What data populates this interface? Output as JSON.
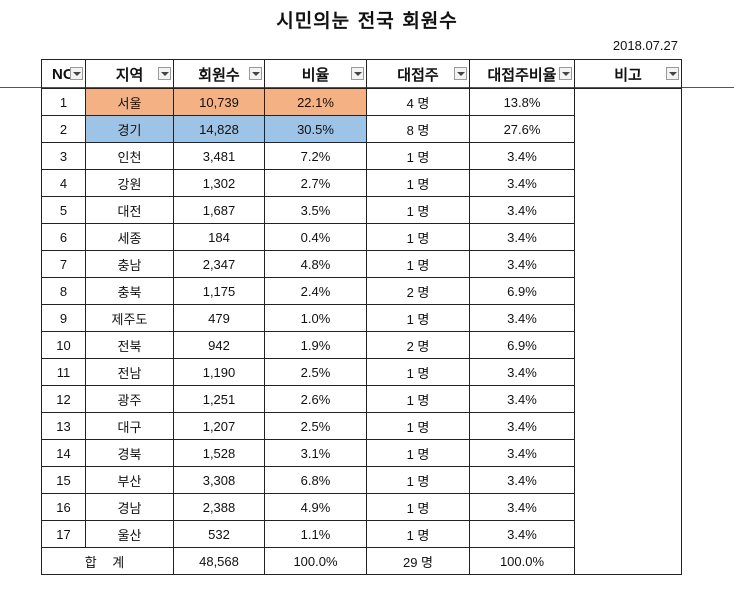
{
  "title": "시민의눈 전국 회원수",
  "date": "2018.07.27",
  "headers": {
    "no": "NO",
    "region": "지역",
    "members": "회원수",
    "ratio": "비율",
    "reps": "대접주",
    "rep_ratio": "대접주비율",
    "notes": "비고"
  },
  "rows": [
    {
      "no": "1",
      "region": "서울",
      "members": "10,739",
      "ratio": "22.1%",
      "reps": "4 명",
      "rep_ratio": "13.8%"
    },
    {
      "no": "2",
      "region": "경기",
      "members": "14,828",
      "ratio": "30.5%",
      "reps": "8 명",
      "rep_ratio": "27.6%"
    },
    {
      "no": "3",
      "region": "인천",
      "members": "3,481",
      "ratio": "7.2%",
      "reps": "1 명",
      "rep_ratio": "3.4%"
    },
    {
      "no": "4",
      "region": "강원",
      "members": "1,302",
      "ratio": "2.7%",
      "reps": "1 명",
      "rep_ratio": "3.4%"
    },
    {
      "no": "5",
      "region": "대전",
      "members": "1,687",
      "ratio": "3.5%",
      "reps": "1 명",
      "rep_ratio": "3.4%"
    },
    {
      "no": "6",
      "region": "세종",
      "members": "184",
      "ratio": "0.4%",
      "reps": "1 명",
      "rep_ratio": "3.4%"
    },
    {
      "no": "7",
      "region": "충남",
      "members": "2,347",
      "ratio": "4.8%",
      "reps": "1 명",
      "rep_ratio": "3.4%"
    },
    {
      "no": "8",
      "region": "충북",
      "members": "1,175",
      "ratio": "2.4%",
      "reps": "2 명",
      "rep_ratio": "6.9%"
    },
    {
      "no": "9",
      "region": "제주도",
      "members": "479",
      "ratio": "1.0%",
      "reps": "1 명",
      "rep_ratio": "3.4%"
    },
    {
      "no": "10",
      "region": "전북",
      "members": "942",
      "ratio": "1.9%",
      "reps": "2 명",
      "rep_ratio": "6.9%"
    },
    {
      "no": "11",
      "region": "전남",
      "members": "1,190",
      "ratio": "2.5%",
      "reps": "1 명",
      "rep_ratio": "3.4%"
    },
    {
      "no": "12",
      "region": "광주",
      "members": "1,251",
      "ratio": "2.6%",
      "reps": "1 명",
      "rep_ratio": "3.4%"
    },
    {
      "no": "13",
      "region": "대구",
      "members": "1,207",
      "ratio": "2.5%",
      "reps": "1 명",
      "rep_ratio": "3.4%"
    },
    {
      "no": "14",
      "region": "경북",
      "members": "1,528",
      "ratio": "3.1%",
      "reps": "1 명",
      "rep_ratio": "3.4%"
    },
    {
      "no": "15",
      "region": "부산",
      "members": "3,308",
      "ratio": "6.8%",
      "reps": "1 명",
      "rep_ratio": "3.4%"
    },
    {
      "no": "16",
      "region": "경남",
      "members": "2,388",
      "ratio": "4.9%",
      "reps": "1 명",
      "rep_ratio": "3.4%"
    },
    {
      "no": "17",
      "region": "울산",
      "members": "532",
      "ratio": "1.1%",
      "reps": "1 명",
      "rep_ratio": "3.4%"
    }
  ],
  "total": {
    "label": "합 계",
    "members": "48,568",
    "ratio": "100.0%",
    "reps": "29 명",
    "rep_ratio": "100.0%"
  },
  "highlight_colors": {
    "seoul": "#f4b183",
    "gyeonggi": "#9dc3e6"
  }
}
